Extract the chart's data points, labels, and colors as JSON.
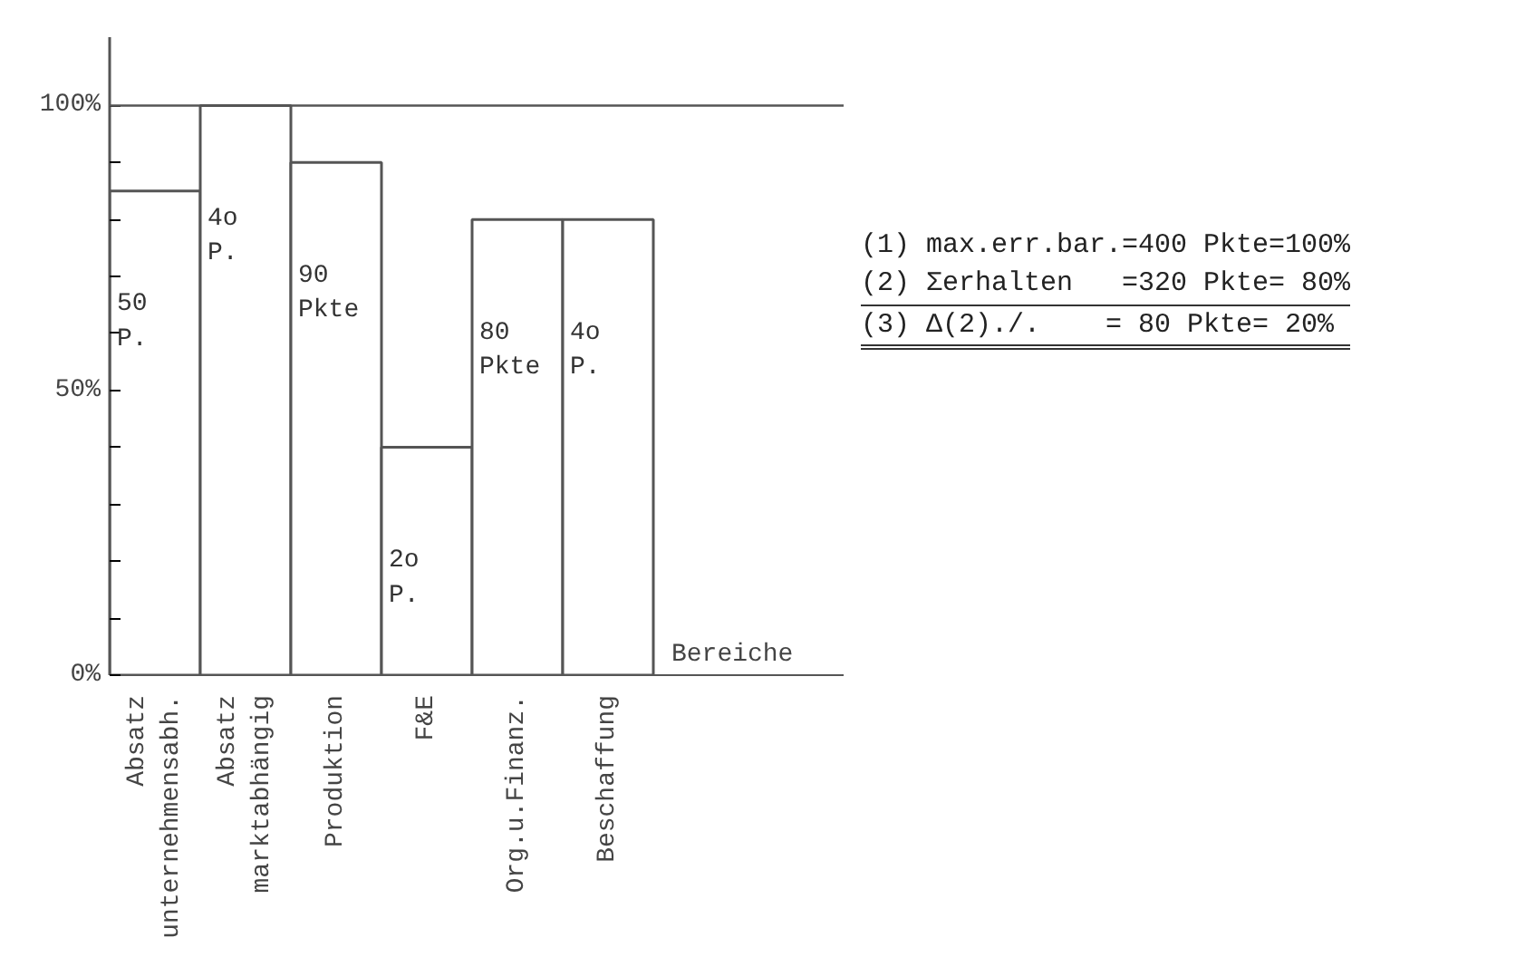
{
  "chart_data": {
    "type": "bar",
    "xlabel": "Bereiche",
    "categories": [
      "Absatz\nunternehmensabh.",
      "Absatz\nmarktabhängig",
      "Produktion",
      "F&E",
      "Org.u.Finanz.",
      "Beschaffung"
    ],
    "values": [
      85,
      100,
      90,
      40,
      80,
      80
    ],
    "color": "#ffffff",
    "ylim": [
      0,
      112
    ],
    "yticks": [
      {
        "value": 0,
        "label": "0%"
      },
      {
        "value": 10,
        "label": null
      },
      {
        "value": 20,
        "label": null
      },
      {
        "value": 30,
        "label": null
      },
      {
        "value": 40,
        "label": null
      },
      {
        "value": 50,
        "label": "50%"
      },
      {
        "value": 60,
        "label": null
      },
      {
        "value": 70,
        "label": null
      },
      {
        "value": 80,
        "label": null
      },
      {
        "value": 90,
        "label": null
      },
      {
        "value": 100,
        "label": "100%"
      }
    ],
    "ref_lines": [
      {
        "axis": "y",
        "value": 100
      }
    ],
    "annotations": [
      "50\nP.",
      "4o\nP.",
      "90\nPkte",
      "2o\nP.",
      "80\nPkte",
      "4o\nP.",
      "(1) max.err.bar.=400 Pkte=100%",
      "(2) Σerhalten   =320 Pkte= 80%",
      "(3) Δ(2)./.    = 80 Pkte= 20%"
    ],
    "grid": false
  }
}
